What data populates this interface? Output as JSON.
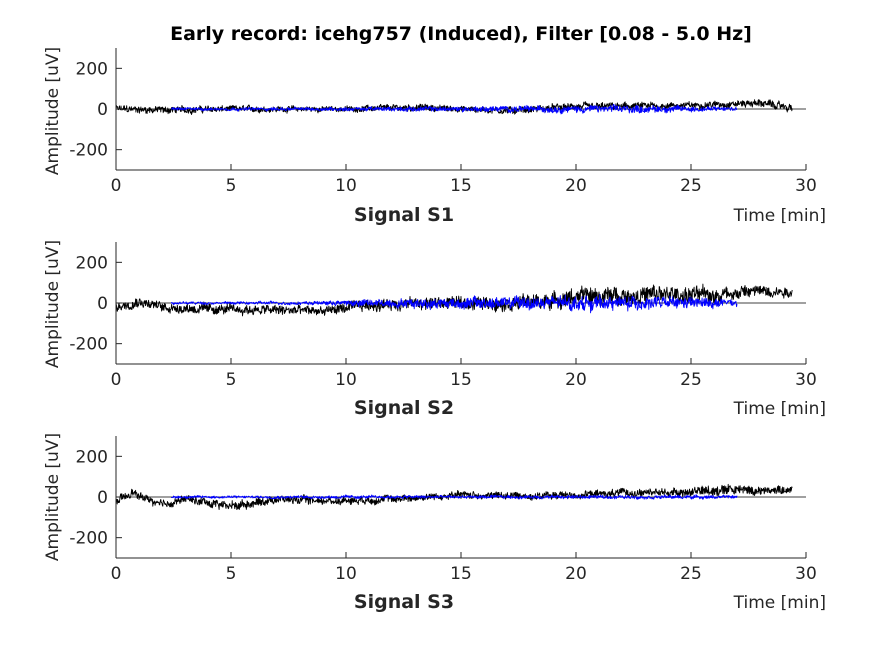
{
  "title": "Early record: icehg757 (Induced), Filter [0.08 - 5.0 Hz]",
  "colors": {
    "raw": "#000000",
    "overlay": "#0000ff",
    "axis": "#262626"
  },
  "chart_data": [
    {
      "type": "line",
      "title": "Signal S1",
      "xlabel": "Time [min]",
      "ylabel": "Amplitude [uV]",
      "xlim": [
        0,
        30
      ],
      "ylim": [
        -300,
        300
      ],
      "xticks": [
        0,
        5,
        10,
        15,
        20,
        25,
        30
      ],
      "yticks": [
        200,
        0,
        -200
      ],
      "series": [
        {
          "color": "#000000",
          "x": [
            0,
            2,
            5,
            10,
            13,
            15,
            17,
            20,
            22,
            25,
            28,
            29.4
          ],
          "y": [
            0,
            -5,
            0,
            0,
            8,
            0,
            -8,
            10,
            12,
            18,
            30,
            5
          ],
          "noise": [
            30,
            30,
            25,
            22,
            28,
            25,
            28,
            30,
            30,
            25,
            30,
            30
          ]
        },
        {
          "color": "#0000ff",
          "x": [
            2.4,
            5,
            10,
            15,
            20,
            23,
            25,
            27
          ],
          "y": [
            0,
            0,
            0,
            0,
            0,
            0,
            0,
            0
          ],
          "noise": [
            12,
            12,
            15,
            20,
            28,
            30,
            22,
            15
          ]
        }
      ]
    },
    {
      "type": "line",
      "title": "Signal S2",
      "xlabel": "Time [min]",
      "ylabel": "Amplitude [uV]",
      "xlim": [
        0,
        30
      ],
      "ylim": [
        -300,
        300
      ],
      "xticks": [
        0,
        5,
        10,
        15,
        20,
        25,
        30
      ],
      "yticks": [
        200,
        0,
        -200
      ],
      "series": [
        {
          "color": "#000000",
          "x": [
            0,
            1,
            2,
            4,
            7,
            9,
            11,
            14,
            17,
            19,
            20,
            23,
            26,
            28,
            29.4
          ],
          "y": [
            -20,
            10,
            -20,
            -30,
            -35,
            -40,
            -10,
            0,
            0,
            10,
            30,
            40,
            40,
            60,
            55
          ],
          "noise": [
            40,
            40,
            40,
            40,
            40,
            40,
            45,
            50,
            55,
            60,
            70,
            70,
            70,
            50,
            40
          ]
        },
        {
          "color": "#0000ff",
          "x": [
            2.4,
            5,
            9,
            11,
            15,
            20,
            25,
            27
          ],
          "y": [
            0,
            0,
            0,
            0,
            0,
            0,
            0,
            0
          ],
          "noise": [
            10,
            10,
            15,
            30,
            45,
            55,
            45,
            30
          ]
        }
      ]
    },
    {
      "type": "line",
      "title": "Signal S3",
      "xlabel": "Time [min]",
      "ylabel": "Amplitude [uV]",
      "xlim": [
        0,
        30
      ],
      "ylim": [
        -300,
        300
      ],
      "xticks": [
        0,
        5,
        10,
        15,
        20,
        25,
        30
      ],
      "yticks": [
        200,
        0,
        -200
      ],
      "series": [
        {
          "color": "#000000",
          "x": [
            0,
            0.7,
            2,
            3,
            5,
            7,
            9,
            12,
            15,
            18,
            20,
            22,
            25,
            26.5,
            28,
            29.4
          ],
          "y": [
            -30,
            20,
            -40,
            -10,
            -45,
            -10,
            -20,
            -10,
            10,
            5,
            10,
            20,
            25,
            40,
            30,
            40
          ],
          "noise": [
            35,
            30,
            35,
            30,
            40,
            30,
            30,
            30,
            30,
            30,
            30,
            30,
            35,
            50,
            35,
            30
          ]
        },
        {
          "color": "#0000ff",
          "x": [
            2.4,
            5,
            10,
            15,
            20,
            25,
            27
          ],
          "y": [
            0,
            0,
            0,
            0,
            0,
            0,
            0
          ],
          "noise": [
            10,
            10,
            12,
            12,
            14,
            14,
            12
          ]
        }
      ]
    }
  ]
}
